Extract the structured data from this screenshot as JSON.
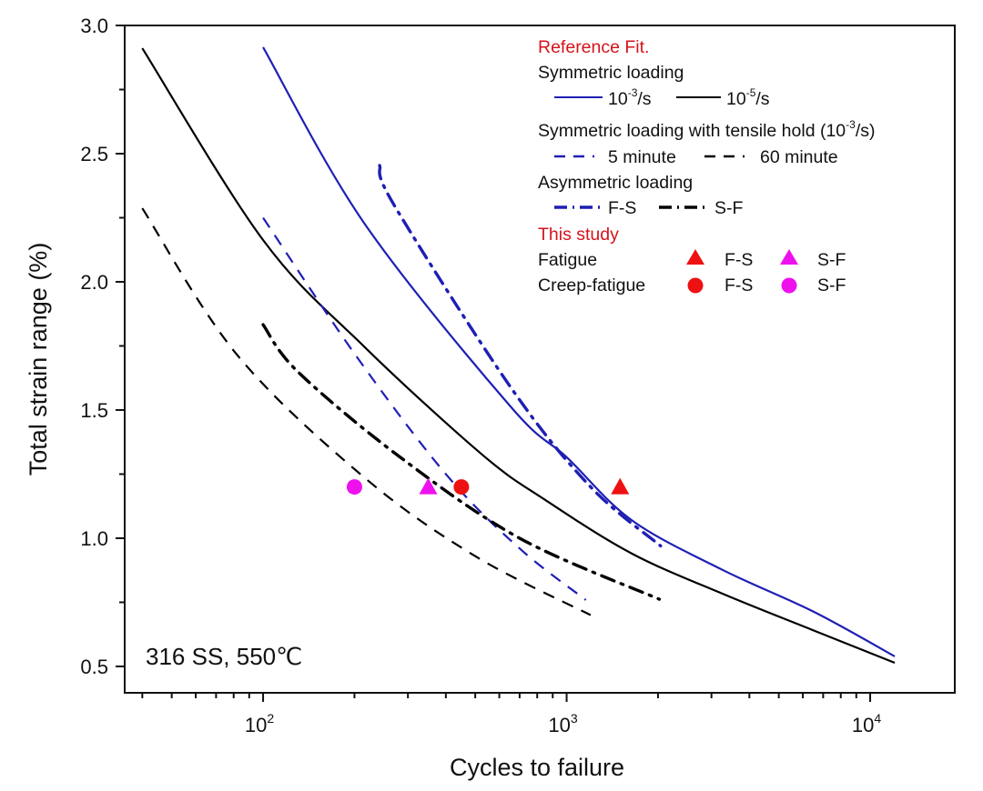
{
  "chart_data": {
    "type": "line",
    "title": "",
    "xlabel": "Cycles to failure",
    "ylabel": "Total strain range (%)",
    "xscale": "log",
    "xlim": [
      35,
      19000
    ],
    "ylim": [
      0.397,
      3.0
    ],
    "x_ticks": [
      {
        "value": 100,
        "base": "10",
        "exp": "2"
      },
      {
        "value": 1000,
        "base": "10",
        "exp": "3"
      },
      {
        "value": 10000,
        "base": "10",
        "exp": "4"
      }
    ],
    "y_ticks": [
      {
        "value": 0.5,
        "label": "0.5"
      },
      {
        "value": 1.0,
        "label": "1.0"
      },
      {
        "value": 1.5,
        "label": "1.5"
      },
      {
        "value": 2.0,
        "label": "2.0"
      },
      {
        "value": 2.5,
        "label": "2.5"
      },
      {
        "value": 3.0,
        "label": "3.0"
      }
    ],
    "y_minor_ticks": [
      0.75,
      1.25,
      1.75,
      2.25,
      2.75
    ],
    "annotation": "316 SS, 550℃",
    "series": [
      {
        "name": "Symmetric loading 10^-3/s",
        "color": "#1f1fb4",
        "style": "solid",
        "x": [
          100,
          215,
          653,
          1000,
          1640,
          3270,
          6520,
          12050
        ],
        "y": [
          2.915,
          2.23,
          1.514,
          1.316,
          1.07,
          0.876,
          0.713,
          0.539
        ]
      },
      {
        "name": "Symmetric loading 10^-5/s",
        "color": "#000000",
        "style": "solid",
        "x": [
          40,
          100,
          215,
          527,
          851,
          1640,
          3270,
          6520,
          12050
        ],
        "y": [
          2.911,
          2.163,
          1.748,
          1.326,
          1.149,
          0.94,
          0.783,
          0.64,
          0.514
        ]
      },
      {
        "name": "Tensile hold 5 minute",
        "color": "#1f1fb4",
        "style": "dash",
        "x": [
          100,
          200,
          400,
          700,
          1157
        ],
        "y": [
          2.25,
          1.72,
          1.25,
          0.96,
          0.759
        ]
      },
      {
        "name": "Tensile hold 60 minute",
        "color": "#000000",
        "style": "dash",
        "x": [
          40,
          82,
          215,
          500,
          1200
        ],
        "y": [
          2.287,
          1.716,
          1.238,
          0.93,
          0.7
        ]
      },
      {
        "name": "Asymmetric loading F-S",
        "color": "#1f1fb4",
        "style": "dashdot",
        "x": [
          242,
          270,
          653,
          1200,
          2040
        ],
        "y": [
          2.454,
          2.3,
          1.59,
          1.2,
          0.97
        ]
      },
      {
        "name": "Asymmetric loading S-F",
        "color": "#000000",
        "style": "dashdot",
        "x": [
          100,
          130,
          280,
          700,
          2020
        ],
        "y": [
          1.833,
          1.65,
          1.32,
          1.0,
          0.762
        ]
      }
    ],
    "points": [
      {
        "name": "Fatigue F-S",
        "marker": "triangle",
        "color": "#ee1111",
        "x": 1500,
        "y": 1.2
      },
      {
        "name": "Fatigue S-F",
        "marker": "triangle",
        "color": "#ee11ee",
        "x": 350,
        "y": 1.2
      },
      {
        "name": "Creep-fatigue F-S",
        "marker": "circle",
        "color": "#ee1111",
        "x": 450,
        "y": 1.2
      },
      {
        "name": "Creep-fatigue S-F",
        "marker": "circle",
        "color": "#ee11ee",
        "x": 200,
        "y": 1.2
      }
    ],
    "legend": {
      "placement": "top-right",
      "header_reference": "Reference Fit.",
      "group_symmetric": "Symmetric loading",
      "sym_fast_base": "10",
      "sym_fast_exp": "-3",
      "sym_fast_unit": "/s",
      "sym_slow_base": "10",
      "sym_slow_exp": "-5",
      "sym_slow_unit": "/s",
      "group_hold_prefix": "Symmetric loading with tensile hold (10",
      "group_hold_exp": "-3",
      "group_hold_suffix": "/s)",
      "hold_5": "5 minute",
      "hold_60": "60 minute",
      "group_asym": "Asymmetric loading",
      "asym_fs": "F-S",
      "asym_sf": "S-F",
      "header_study": "This study",
      "row_fatigue": "Fatigue",
      "row_creep": "Creep-fatigue",
      "fs": "F-S",
      "sf": "S-F"
    }
  }
}
